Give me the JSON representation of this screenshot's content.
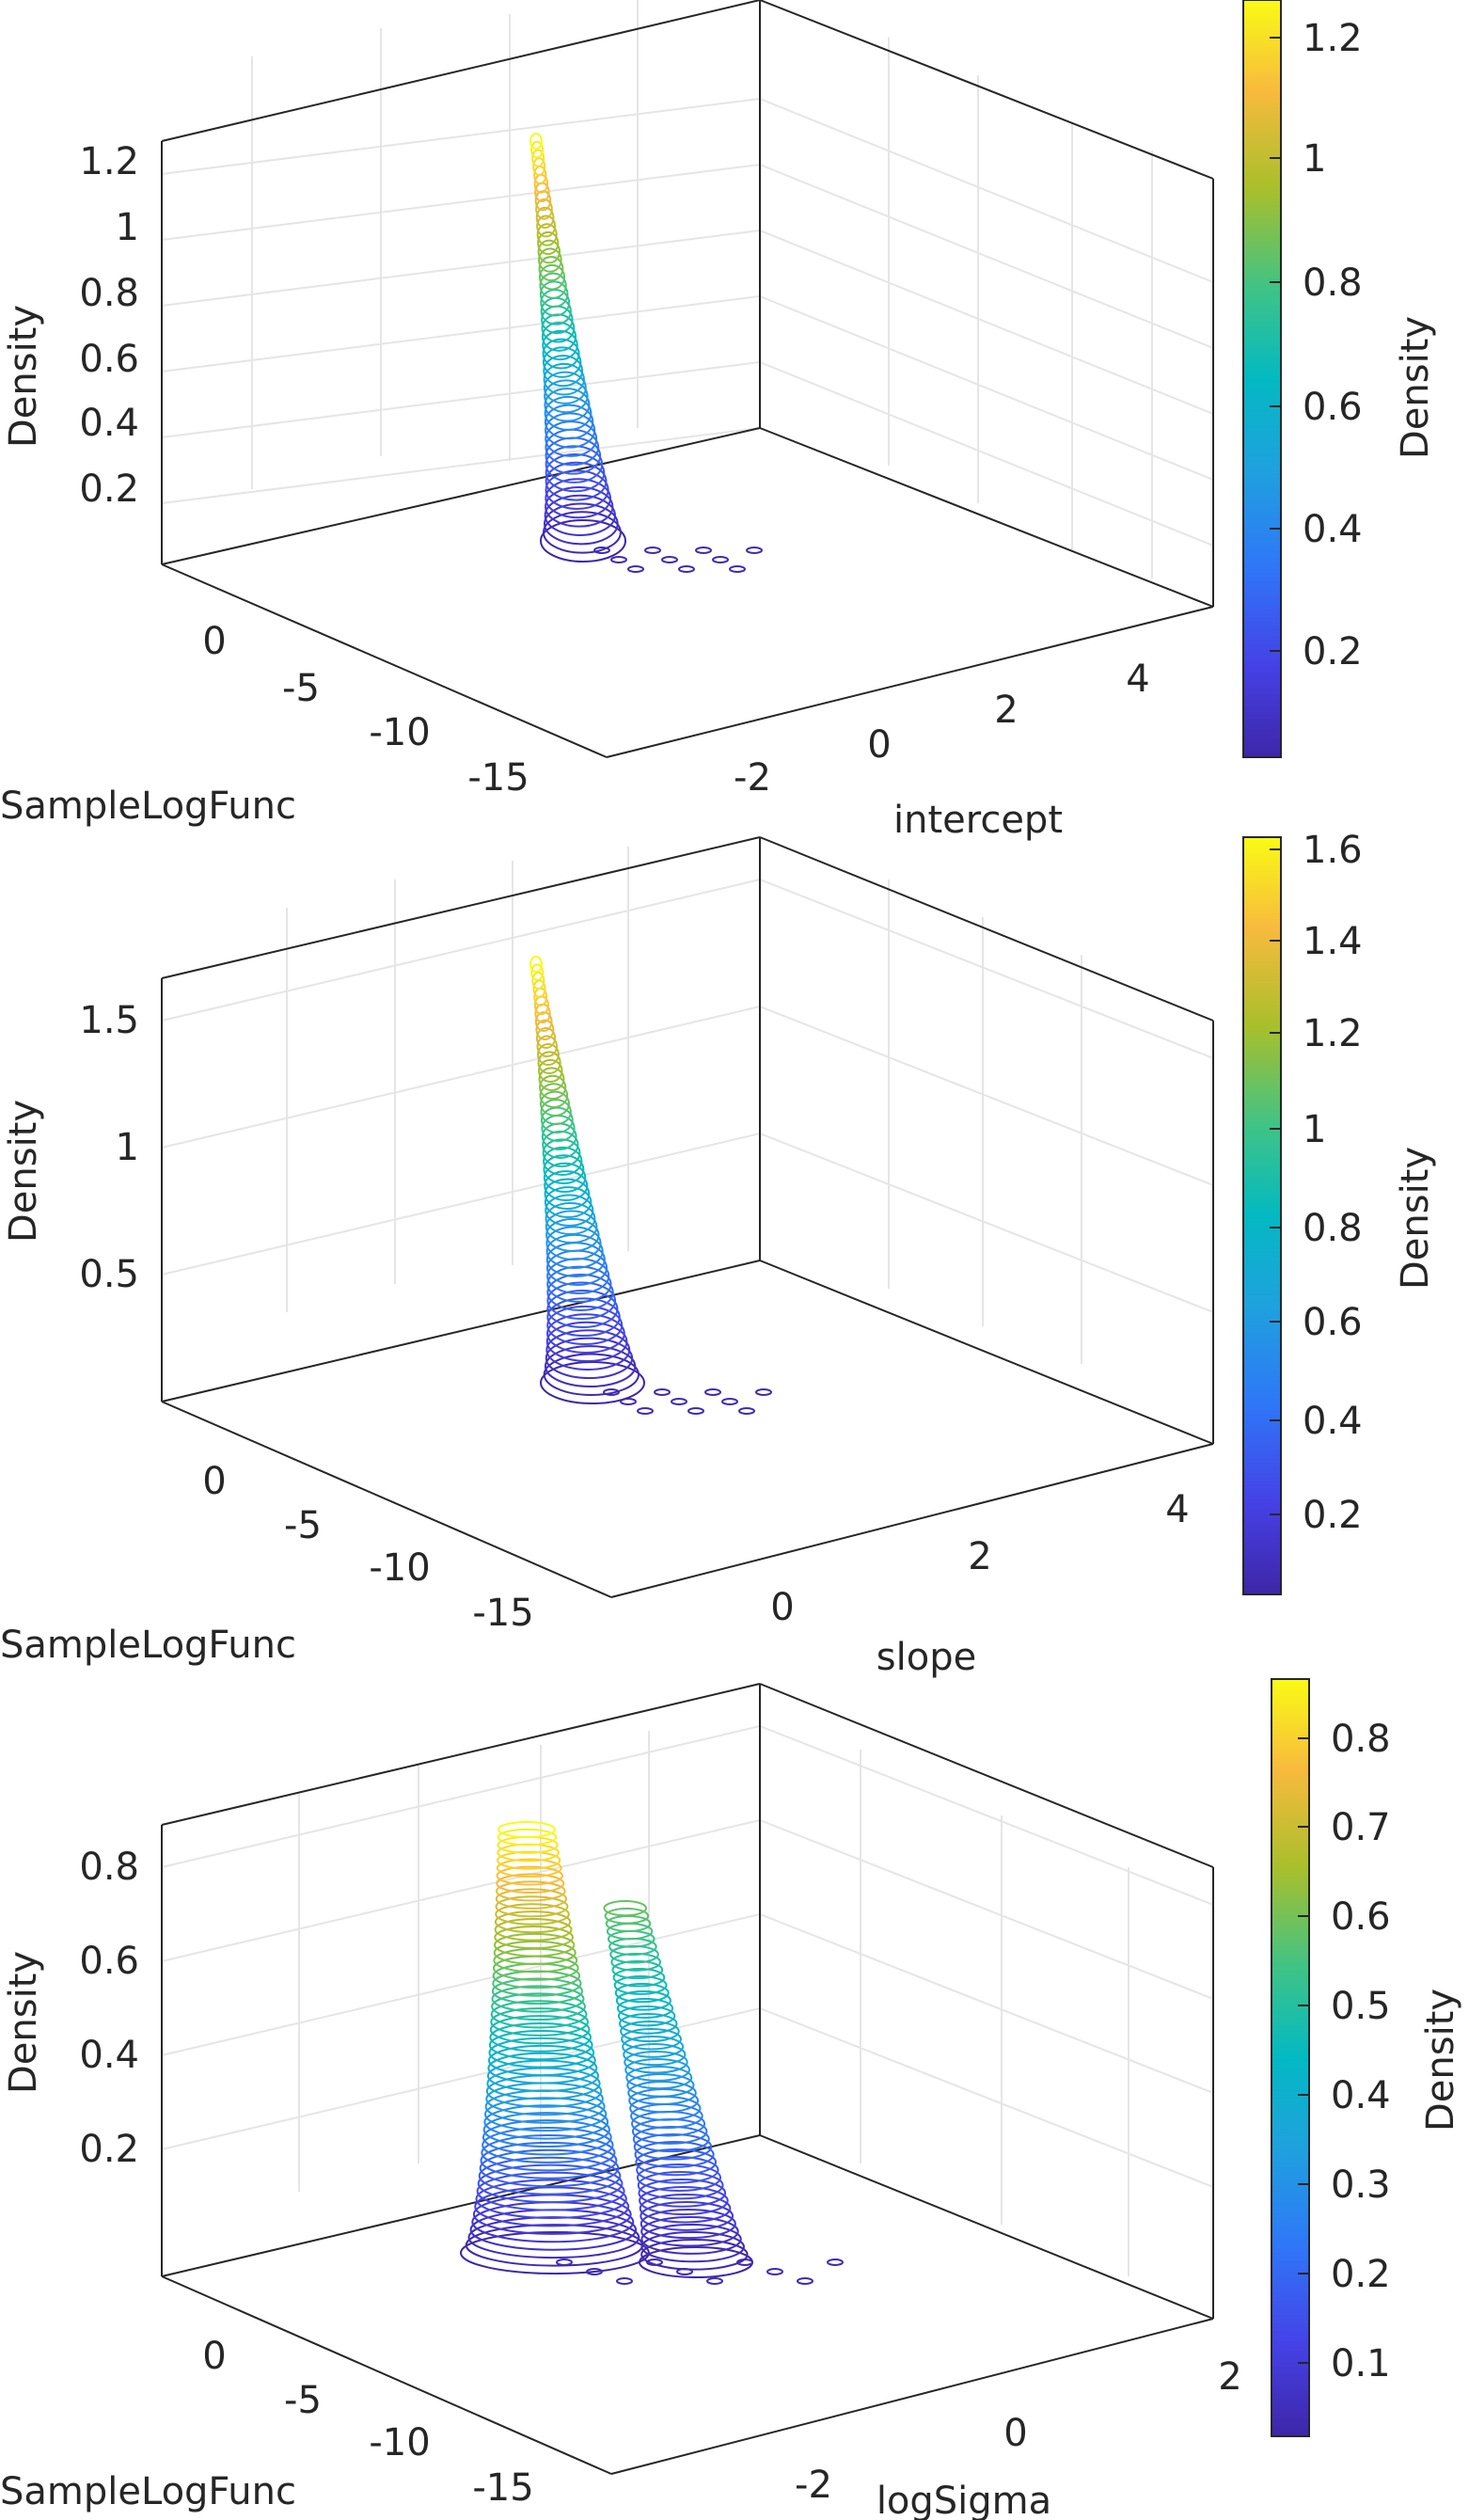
{
  "chart_data": [
    {
      "type": "contour3",
      "title": "",
      "xlabel": "SampleLogFunc",
      "ylabel": "intercept",
      "zlabel": "Density",
      "colorbar_label": "Density",
      "colormap": "parula",
      "xlim": [
        -17,
        3
      ],
      "ylim": [
        -3.5,
        5.5
      ],
      "zlim": [
        0,
        1.3
      ],
      "x_ticks": [
        0,
        -5,
        -10,
        -15
      ],
      "y_ticks": [
        -2,
        0,
        2,
        4
      ],
      "z_ticks": [
        0.2,
        0.4,
        0.6,
        0.8,
        1,
        1.2
      ],
      "colorbar_ticks": [
        0.2,
        0.4,
        0.6,
        0.8,
        1,
        1.2
      ],
      "colorbar_range": [
        0.03,
        1.25
      ],
      "grid": true,
      "peak": {
        "x": 1.2,
        "y": -0.6,
        "z": 1.24
      }
    },
    {
      "type": "contour3",
      "title": "",
      "xlabel": "SampleLogFunc",
      "ylabel": "slope",
      "zlabel": "Density",
      "colorbar_label": "Density",
      "colormap": "parula",
      "xlim": [
        -17,
        3
      ],
      "ylim": [
        -1.5,
        5
      ],
      "zlim": [
        0,
        1.75
      ],
      "x_ticks": [
        0,
        -5,
        -10,
        -15
      ],
      "y_ticks": [
        0,
        2,
        4
      ],
      "z_ticks": [
        0.5,
        1,
        1.5
      ],
      "colorbar_ticks": [
        0.2,
        0.4,
        0.6,
        0.8,
        1,
        1.2,
        1.4,
        1.6
      ],
      "colorbar_range": [
        0.03,
        1.62
      ],
      "grid": true,
      "peak": {
        "x": 1.2,
        "y": 0.9,
        "z": 1.62
      }
    },
    {
      "type": "contour3",
      "title": "",
      "xlabel": "SampleLogFunc",
      "ylabel": "logSigma",
      "zlabel": "Density",
      "colorbar_label": "Density",
      "colormap": "parula",
      "xlim": [
        -17,
        3
      ],
      "ylim": [
        -3.5,
        2.5
      ],
      "zlim": [
        0,
        0.92
      ],
      "x_ticks": [
        0,
        -5,
        -10,
        -15
      ],
      "y_ticks": [
        -2,
        0,
        2
      ],
      "z_ticks": [
        0.2,
        0.4,
        0.6,
        0.8
      ],
      "colorbar_ticks": [
        0.1,
        0.2,
        0.3,
        0.4,
        0.5,
        0.6,
        0.7,
        0.8
      ],
      "colorbar_range": [
        0.02,
        0.86
      ],
      "grid": true,
      "peak": {
        "x": 0.5,
        "y": -2.4,
        "z": 0.85
      }
    }
  ]
}
